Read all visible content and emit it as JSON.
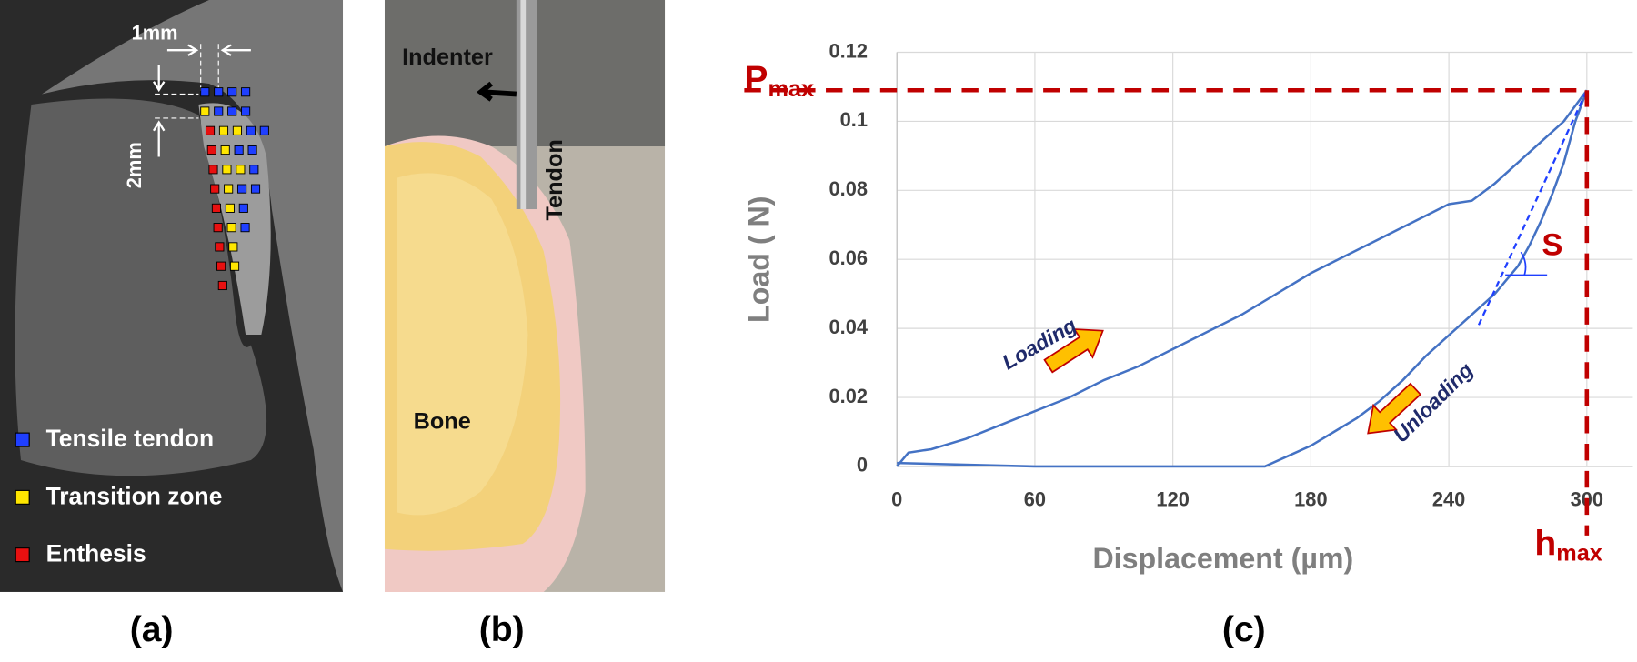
{
  "chart_data": {
    "type": "line",
    "panel_label": "(c)",
    "x_label": "Displacement (µm)",
    "y_label": "Load ( N)",
    "xlim": [
      0,
      320
    ],
    "ylim": [
      0,
      0.12
    ],
    "xticks": [
      0,
      60,
      120,
      180,
      240,
      300
    ],
    "yticks": [
      0,
      0.02,
      0.04,
      0.06,
      0.08,
      0.1,
      0.12
    ],
    "grid": true,
    "series": [
      {
        "name": "Loading",
        "color": "#4472c4",
        "x": [
          0,
          5,
          15,
          30,
          45,
          60,
          75,
          90,
          105,
          120,
          135,
          150,
          165,
          180,
          195,
          210,
          225,
          240,
          250,
          260,
          270,
          280,
          290,
          300
        ],
        "values": [
          0,
          0.004,
          0.005,
          0.008,
          0.012,
          0.016,
          0.02,
          0.025,
          0.029,
          0.034,
          0.039,
          0.044,
          0.05,
          0.056,
          0.061,
          0.066,
          0.071,
          0.076,
          0.077,
          0.082,
          0.088,
          0.094,
          0.1,
          0.109
        ]
      },
      {
        "name": "Unloading",
        "color": "#4472c4",
        "x": [
          300,
          295,
          290,
          285,
          280,
          275,
          270,
          260,
          250,
          240,
          230,
          220,
          210,
          200,
          190,
          180,
          170,
          160,
          120,
          60,
          0
        ],
        "values": [
          0.109,
          0.1,
          0.088,
          0.079,
          0.071,
          0.064,
          0.058,
          0.05,
          0.044,
          0.038,
          0.032,
          0.025,
          0.019,
          0.014,
          0.01,
          0.006,
          0.003,
          0,
          0,
          0,
          0.001
        ]
      }
    ],
    "pmax": {
      "label": "P",
      "sub": "max",
      "value": 0.109
    },
    "hmax": {
      "label": "h",
      "sub": "max",
      "value": 300
    },
    "tangent": {
      "label": "S",
      "x": [
        253,
        300
      ],
      "y": [
        0.041,
        0.109
      ]
    }
  },
  "panels": {
    "a": {
      "label": "(a)",
      "dimensions": [
        "1mm",
        "2mm"
      ],
      "legend": [
        {
          "name": "Tensile tendon",
          "color": "#1f3fff"
        },
        {
          "name": "Transition zone",
          "color": "#ffe600"
        },
        {
          "name": "Enthesis",
          "color": "#e81010"
        }
      ]
    },
    "b": {
      "label": "(b)",
      "annotations": [
        "Indenter",
        "Tendon",
        "Bone"
      ]
    }
  }
}
